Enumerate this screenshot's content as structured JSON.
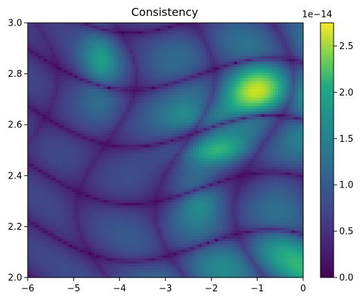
{
  "chart_data": {
    "type": "heatmap",
    "title": "Consistency",
    "xlabel": "",
    "ylabel": "",
    "xlim": [
      -6,
      0
    ],
    "ylim": [
      2.0,
      3.0
    ],
    "x_ticks": [
      -6,
      -5,
      -4,
      -3,
      -2,
      -1,
      0
    ],
    "x_tick_labels": [
      "−6",
      "−5",
      "−4",
      "−3",
      "−2",
      "−1",
      "0"
    ],
    "y_ticks": [
      2.0,
      2.2,
      2.4,
      2.6,
      2.8,
      3.0
    ],
    "y_tick_labels": [
      "2.0",
      "2.2",
      "2.4",
      "2.6",
      "2.8",
      "3.0"
    ],
    "colorbar": {
      "colormap": "viridis",
      "range": [
        0.0,
        2.75
      ],
      "ticks": [
        0.0,
        0.5,
        1.0,
        1.5,
        2.0,
        2.5
      ],
      "tick_labels": [
        "0.0",
        "0.5",
        "1.0",
        "1.5",
        "2.0",
        "2.5"
      ],
      "scale_label": "1e−14"
    },
    "grid": false,
    "notes_visible": "values shown as a dense grid; peaks near x≈−1 to −2, y≈2.5–2.75; dark wavy contour bands across the field"
  }
}
